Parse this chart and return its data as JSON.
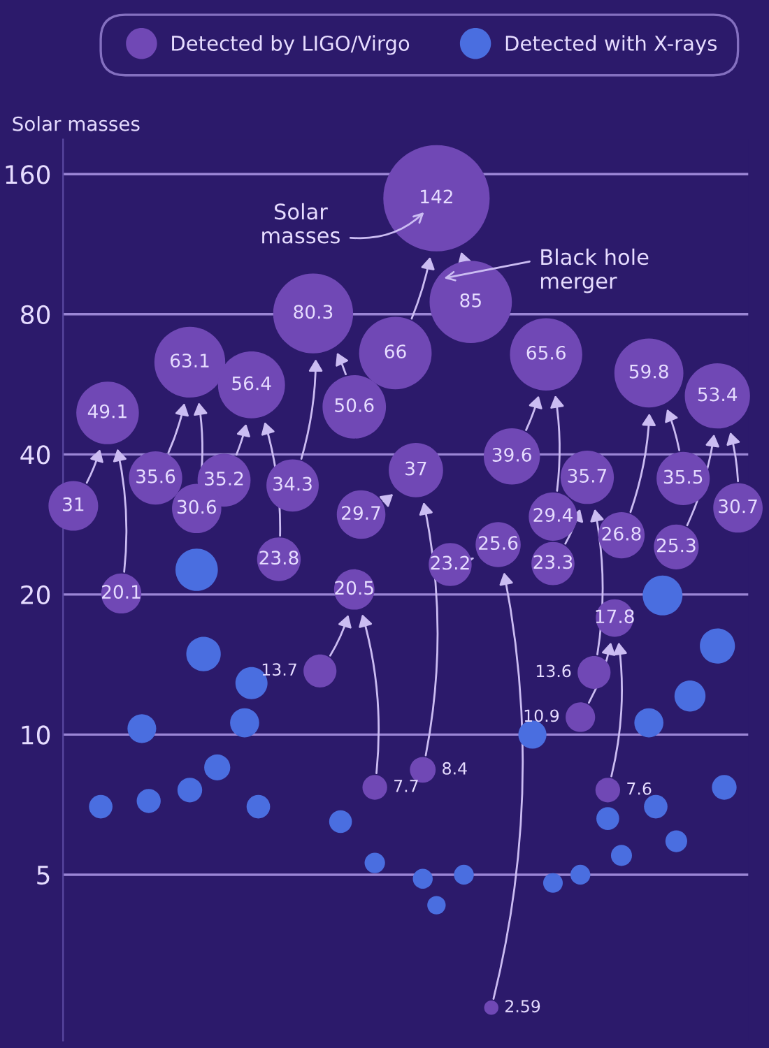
{
  "chart_data": {
    "type": "bubble",
    "ylabel": "Solar masses",
    "log": "y",
    "ylim": [
      2.2,
      190
    ],
    "yticks": [
      5,
      10,
      20,
      40,
      80,
      160
    ],
    "tick_labels": "y",
    "grid": "y",
    "legend": "top",
    "marker": "circle",
    "annotations": [
      "Solar\nmasses",
      "Black hole\nmerger"
    ],
    "categories": [
      null,
      null,
      null,
      null,
      null,
      null,
      null,
      null,
      null,
      null,
      null,
      null,
      null,
      null,
      null,
      null,
      null,
      null,
      null,
      null,
      null,
      null,
      null,
      null,
      null,
      null,
      null,
      null,
      null,
      null,
      null,
      null,
      null,
      null,
      null,
      null,
      null,
      null,
      null,
      null,
      null,
      null,
      null,
      null,
      null,
      null,
      null,
      null,
      null,
      null,
      null,
      null,
      null,
      null,
      null,
      null,
      null,
      null,
      null,
      null,
      null,
      null,
      null,
      null,
      null,
      null,
      null,
      null,
      null,
      null,
      null,
      null,
      null,
      null,
      null,
      null,
      null,
      null,
      null,
      null,
      null,
      null,
      null,
      null,
      null,
      null,
      null,
      null,
      null,
      null,
      null,
      null,
      null,
      null,
      null,
      null,
      null,
      null,
      null,
      null
    ],
    "series": [
      {
        "name": "Detected by LIGO/Virgo",
        "color": "#7048b5",
        "data_labels": true,
        "values": [
          null,
          null,
          null,
          null,
          null,
          null,
          49.1,
          null,
          null,
          null,
          null,
          null,
          null,
          null,
          null,
          null,
          null,
          null,
          63.1,
          null,
          null,
          null,
          null,
          null,
          null,
          null,
          null,
          56.4,
          null,
          null,
          null,
          null,
          null,
          null,
          null,
          null,
          80.3,
          null,
          null,
          null,
          null,
          null,
          20.5,
          null,
          null,
          null,
          null,
          null,
          null,
          null,
          null,
          37,
          null,
          null,
          142,
          null,
          null,
          null,
          null,
          null,
          null,
          null,
          null,
          25.6,
          null,
          null,
          null,
          null,
          null,
          null,
          65.6,
          null,
          null,
          null,
          null,
          null,
          35.7,
          null,
          null,
          null,
          17.8,
          null,
          null,
          null,
          null,
          59.8,
          null,
          null,
          null,
          null,
          null,
          null,
          null,
          null,
          null,
          53.4,
          null,
          null,
          null,
          null
        ],
        "sizes": [
          null,
          null,
          null,
          null,
          null,
          null,
          0.346,
          null,
          null,
          null,
          null,
          null,
          null,
          null,
          null,
          null,
          null,
          null,
          0.444,
          null,
          null,
          null,
          null,
          null,
          null,
          null,
          null,
          0.397,
          null,
          null,
          null,
          null,
          null,
          null,
          null,
          null,
          0.565,
          null,
          null,
          null,
          null,
          null,
          0.144,
          null,
          null,
          null,
          null,
          null,
          null,
          null,
          null,
          0.261,
          null,
          null,
          1,
          null,
          null,
          null,
          null,
          null,
          null,
          null,
          null,
          0.18,
          null,
          null,
          null,
          null,
          null,
          null,
          0.462,
          null,
          null,
          null,
          null,
          null,
          0.251,
          null,
          null,
          null,
          0.125,
          null,
          null,
          null,
          null,
          0.421,
          null,
          null,
          null,
          null,
          null,
          null,
          null,
          null,
          null,
          0.376,
          null,
          null,
          null,
          null
        ]
      },
      {
        "color": "#7048b5",
        "data_labels": true,
        "values": [
          null,
          31,
          null,
          null,
          null,
          null,
          null,
          null,
          null,
          null,
          null,
          null,
          null,
          35.6,
          null,
          null,
          null,
          null,
          null,
          null,
          null,
          null,
          null,
          35.2,
          null,
          null,
          null,
          null,
          null,
          null,
          null,
          null,
          null,
          34.3,
          null,
          null,
          null,
          13.7,
          null,
          null,
          null,
          null,
          null,
          29.7,
          null,
          null,
          null,
          null,
          66,
          null,
          null,
          null,
          null,
          null,
          null,
          null,
          23.2,
          null,
          null,
          null,
          null,
          null,
          null,
          null,
          null,
          39.6,
          null,
          null,
          null,
          null,
          null,
          23.3,
          null,
          null,
          null,
          10.9,
          null,
          null,
          null,
          null,
          null,
          null,
          null,
          null,
          null,
          null,
          null,
          null,
          null,
          null,
          35.5,
          null,
          null,
          null,
          null,
          null,
          null,
          null,
          30.7,
          null
        ],
        "sizes": [
          null,
          0.218,
          null,
          null,
          null,
          null,
          null,
          null,
          null,
          null,
          null,
          null,
          null,
          0.251,
          null,
          null,
          null,
          null,
          null,
          null,
          null,
          null,
          null,
          0.248,
          null,
          null,
          null,
          null,
          null,
          null,
          null,
          null,
          null,
          0.242,
          null,
          null,
          null,
          0.096,
          null,
          null,
          null,
          null,
          null,
          0.209,
          null,
          null,
          null,
          null,
          0.465,
          null,
          null,
          null,
          null,
          null,
          null,
          null,
          0.163,
          null,
          null,
          null,
          null,
          null,
          null,
          null,
          null,
          0.279,
          null,
          null,
          null,
          null,
          null,
          0.164,
          null,
          null,
          null,
          0.077,
          null,
          null,
          null,
          null,
          null,
          null,
          null,
          null,
          null,
          null,
          null,
          null,
          null,
          null,
          0.25,
          null,
          null,
          null,
          null,
          null,
          null,
          null,
          0.216,
          null
        ]
      },
      {
        "color": "#7048b5",
        "data_labels": true,
        "values": [
          null,
          null,
          null,
          null,
          null,
          null,
          null,
          null,
          20.1,
          null,
          null,
          null,
          null,
          null,
          null,
          null,
          null,
          null,
          null,
          30.6,
          null,
          null,
          null,
          null,
          null,
          null,
          null,
          null,
          null,
          null,
          null,
          23.8,
          null,
          null,
          null,
          null,
          null,
          null,
          null,
          null,
          null,
          null,
          50.6,
          null,
          null,
          7.7,
          null,
          null,
          null,
          null,
          null,
          null,
          8.4,
          null,
          null,
          null,
          null,
          null,
          null,
          85,
          null,
          null,
          2.59,
          null,
          null,
          null,
          null,
          null,
          null,
          null,
          null,
          29.4,
          null,
          null,
          null,
          null,
          null,
          13.6,
          null,
          7.6,
          null,
          26.8,
          null,
          null,
          null,
          null,
          null,
          null,
          null,
          25.3,
          null,
          null,
          null,
          null,
          null,
          null,
          null,
          null,
          null,
          null
        ],
        "sizes": [
          null,
          null,
          null,
          null,
          null,
          null,
          null,
          null,
          0.142,
          null,
          null,
          null,
          null,
          null,
          null,
          null,
          null,
          null,
          null,
          0.215,
          null,
          null,
          null,
          null,
          null,
          null,
          null,
          null,
          null,
          null,
          null,
          0.168,
          null,
          null,
          null,
          null,
          null,
          null,
          null,
          null,
          null,
          null,
          0.356,
          null,
          null,
          0.054,
          null,
          null,
          null,
          null,
          null,
          null,
          0.059,
          null,
          null,
          null,
          null,
          null,
          null,
          0.599,
          null,
          null,
          0.018,
          null,
          null,
          null,
          null,
          null,
          null,
          null,
          null,
          0.207,
          null,
          null,
          null,
          null,
          null,
          0.096,
          null,
          0.054,
          null,
          0.189,
          null,
          null,
          null,
          null,
          null,
          null,
          null,
          0.178,
          null,
          null,
          null,
          null,
          null,
          null,
          null,
          null,
          null,
          null
        ]
      },
      {
        "name": "Detected with X-rays",
        "color": "#4a6ee0",
        "values": [
          null,
          null,
          null,
          null,
          null,
          7.0,
          null,
          null,
          null,
          null,
          null,
          10.3,
          7.2,
          null,
          null,
          null,
          null,
          null,
          7.6,
          22.6,
          14.9,
          null,
          8.5,
          null,
          null,
          null,
          10.6,
          12.9,
          7.0,
          null,
          null,
          null,
          null,
          null,
          null,
          null,
          null,
          null,
          null,
          null,
          6.5,
          null,
          null,
          null,
          null,
          5.3,
          null,
          null,
          null,
          null,
          null,
          null,
          4.9,
          null,
          4.3,
          null,
          null,
          null,
          5.0,
          null,
          null,
          null,
          null,
          null,
          null,
          null,
          null,
          null,
          10.0,
          null,
          null,
          4.8,
          null,
          null,
          null,
          5.0,
          null,
          null,
          null,
          6.6,
          null,
          5.5,
          null,
          null,
          null,
          10.6,
          7.0,
          19.9,
          null,
          5.9,
          null,
          12.1,
          null,
          null,
          null,
          15.5,
          7.7,
          null,
          null,
          null
        ],
        "sizes": [
          null,
          null,
          null,
          null,
          null,
          0.049,
          null,
          null,
          null,
          null,
          null,
          0.073,
          0.051,
          null,
          null,
          null,
          null,
          null,
          0.054,
          0.159,
          0.105,
          null,
          0.06,
          null,
          null,
          null,
          0.075,
          0.091,
          0.049,
          null,
          null,
          null,
          null,
          null,
          null,
          null,
          null,
          null,
          null,
          null,
          0.046,
          null,
          null,
          null,
          null,
          0.037,
          null,
          null,
          null,
          null,
          null,
          null,
          0.035,
          null,
          0.03,
          null,
          null,
          null,
          0.035,
          null,
          null,
          null,
          null,
          null,
          null,
          null,
          null,
          null,
          0.07,
          null,
          null,
          0.034,
          null,
          null,
          null,
          0.035,
          null,
          null,
          null,
          0.046,
          null,
          0.039,
          null,
          null,
          null,
          0.075,
          0.049,
          0.14,
          null,
          0.042,
          null,
          0.085,
          null,
          null,
          null,
          0.109,
          0.054,
          null,
          null,
          null
        ]
      }
    ]
  }
}
